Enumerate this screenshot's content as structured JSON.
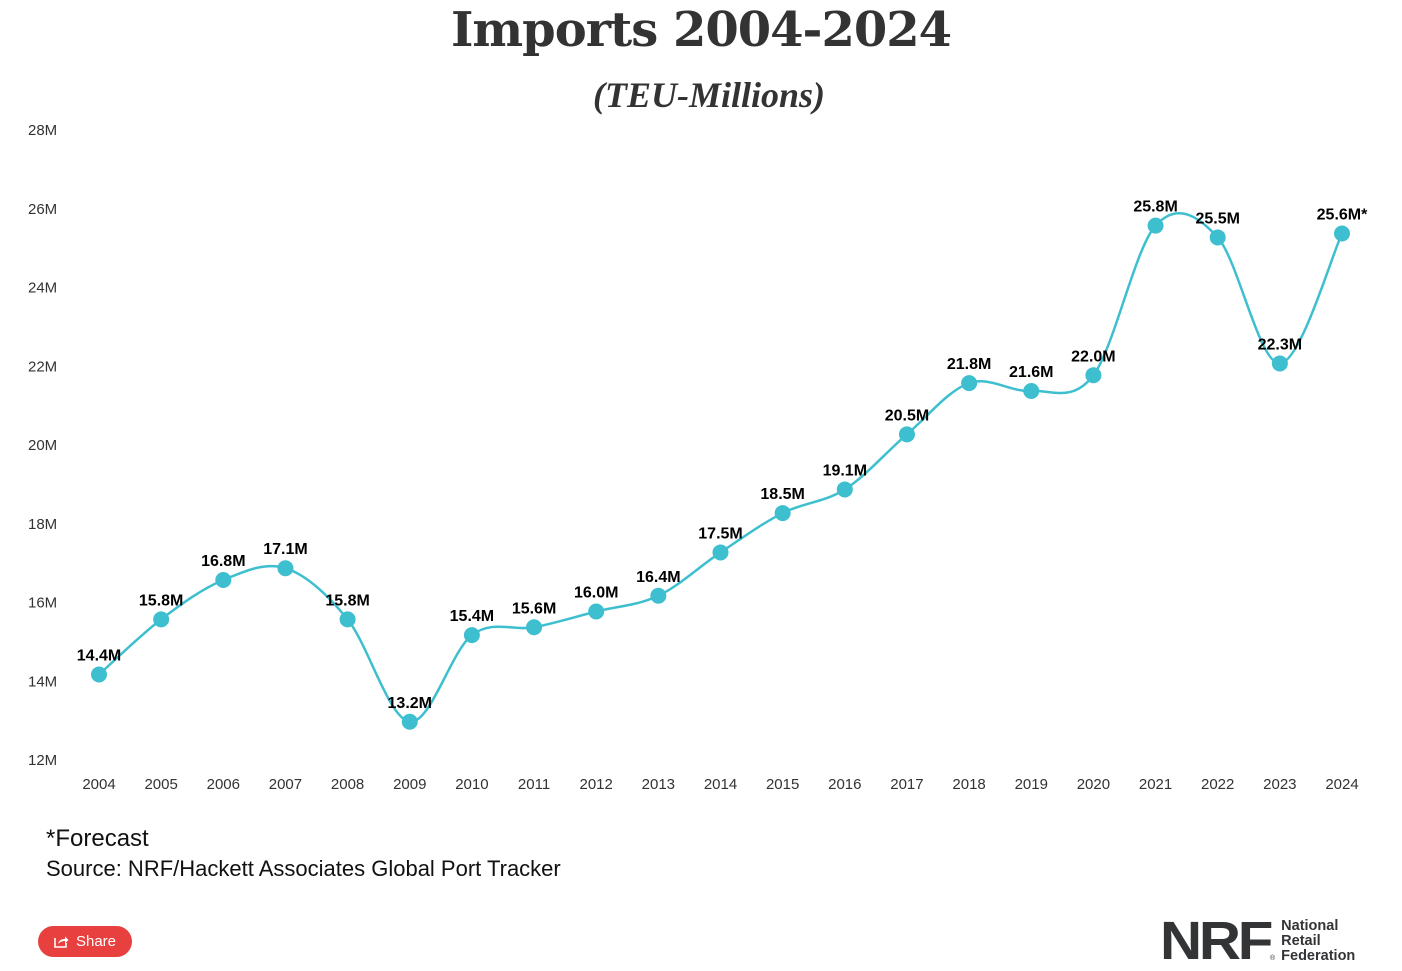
{
  "chart_data": {
    "type": "line",
    "title": "Imports 2004-2024",
    "subtitle": "(TEU-Millions)",
    "xlabel": "",
    "ylabel": "",
    "categories": [
      "2004",
      "2005",
      "2006",
      "2007",
      "2008",
      "2009",
      "2010",
      "2011",
      "2012",
      "2013",
      "2014",
      "2015",
      "2016",
      "2017",
      "2018",
      "2019",
      "2020",
      "2021",
      "2022",
      "2023",
      "2024"
    ],
    "series": [
      {
        "name": "Imports (TEU)",
        "values": [
          14.4,
          15.8,
          16.8,
          17.1,
          15.8,
          13.2,
          15.4,
          15.6,
          16.0,
          16.4,
          17.5,
          18.5,
          19.1,
          20.5,
          21.8,
          21.6,
          22.0,
          25.8,
          25.5,
          22.3,
          25.6
        ],
        "labels": [
          "14.4M",
          "15.8M",
          "16.8M",
          "17.1M",
          "15.8M",
          "13.2M",
          "15.4M",
          "15.6M",
          "16.0M",
          "16.4M",
          "17.5M",
          "18.5M",
          "19.1M",
          "20.5M",
          "21.8M",
          "21.6M",
          "22.0M",
          "25.8M",
          "25.5M",
          "22.3M",
          "25.6M*"
        ],
        "color": "#3dbfcf"
      }
    ],
    "yticks": [
      12,
      14,
      16,
      18,
      20,
      22,
      24,
      26,
      28
    ],
    "ytick_labels": [
      "12M",
      "14M",
      "16M",
      "18M",
      "20M",
      "22M",
      "24M",
      "26M",
      "28M"
    ],
    "ylim": [
      12,
      28
    ],
    "grid": false,
    "legend": "none",
    "smooth": true
  },
  "footer": {
    "note": "*Forecast",
    "source": "Source: NRF/Hackett Associates Global Port Tracker"
  },
  "share": {
    "label": "Share",
    "icon": "share-icon",
    "color": "#e8403f"
  },
  "logo": {
    "mark": "NRF",
    "registered": "®",
    "lines": [
      "National",
      "Retail",
      "Federation"
    ]
  }
}
